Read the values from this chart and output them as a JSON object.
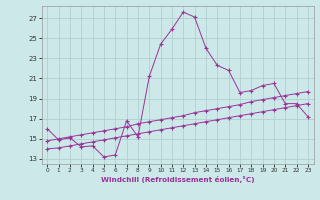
{
  "xlabel": "Windchill (Refroidissement éolien,°C)",
  "bg_color": "#cce8e8",
  "grid_color": "#aacccc",
  "line_color": "#993399",
  "x_ticks": [
    0,
    1,
    2,
    3,
    4,
    5,
    6,
    7,
    8,
    9,
    10,
    11,
    12,
    13,
    14,
    15,
    16,
    17,
    18,
    19,
    20,
    21,
    22,
    23
  ],
  "y_ticks": [
    13,
    15,
    17,
    19,
    21,
    23,
    25,
    27
  ],
  "xlim": [
    -0.5,
    23.5
  ],
  "ylim": [
    12.5,
    28.2
  ],
  "series1_x": [
    0,
    1,
    2,
    3,
    4,
    5,
    6,
    7,
    8,
    9,
    10,
    11,
    12,
    13,
    14,
    15,
    16,
    17,
    18,
    19,
    20,
    21,
    22,
    23
  ],
  "series1_y": [
    16.0,
    14.9,
    15.1,
    14.2,
    14.3,
    13.2,
    13.4,
    16.8,
    15.2,
    21.2,
    24.4,
    25.9,
    27.6,
    27.1,
    24.0,
    22.3,
    21.8,
    19.6,
    19.8,
    20.3,
    20.5,
    18.5,
    18.5,
    17.2
  ],
  "series2_x": [
    0,
    1,
    2,
    3,
    4,
    5,
    6,
    7,
    8,
    9,
    10,
    11,
    12,
    13,
    14,
    15,
    16,
    17,
    18,
    19,
    20,
    21,
    22,
    23
  ],
  "series2_y": [
    14.8,
    15.0,
    15.2,
    15.4,
    15.6,
    15.8,
    16.0,
    16.2,
    16.5,
    16.7,
    16.9,
    17.1,
    17.3,
    17.6,
    17.8,
    18.0,
    18.2,
    18.4,
    18.7,
    18.9,
    19.1,
    19.3,
    19.5,
    19.7
  ],
  "series3_x": [
    0,
    1,
    2,
    3,
    4,
    5,
    6,
    7,
    8,
    9,
    10,
    11,
    12,
    13,
    14,
    15,
    16,
    17,
    18,
    19,
    20,
    21,
    22,
    23
  ],
  "series3_y": [
    14.0,
    14.1,
    14.3,
    14.5,
    14.7,
    14.9,
    15.1,
    15.3,
    15.5,
    15.7,
    15.9,
    16.1,
    16.3,
    16.5,
    16.7,
    16.9,
    17.1,
    17.3,
    17.5,
    17.7,
    17.9,
    18.1,
    18.3,
    18.5
  ]
}
